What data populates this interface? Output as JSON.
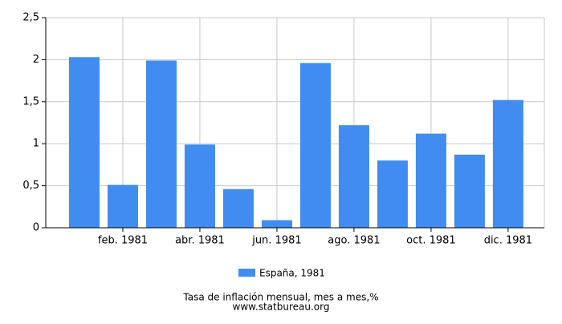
{
  "chart_data": {
    "type": "bar",
    "title": "Tasa de inflación mensual, mes a mes,%",
    "source": "www.statbureau.org",
    "categories": [
      null,
      "feb. 1981",
      null,
      "abr. 1981",
      null,
      "jun. 1981",
      null,
      "ago. 1981",
      null,
      "oct. 1981",
      null,
      "dic. 1981"
    ],
    "series": [
      {
        "name": "España, 1981",
        "color": "#418cf0",
        "values": [
          2.03,
          0.51,
          1.99,
          0.99,
          0.46,
          0.09,
          1.96,
          1.22,
          0.8,
          1.12,
          0.87,
          1.52
        ]
      }
    ],
    "ylim": [
      0,
      2.5
    ],
    "yticks": [
      0,
      {
        "value": 0.5,
        "label": "0,5"
      },
      1,
      {
        "value": 1.5,
        "label": "1,5"
      },
      2,
      {
        "value": 2.5,
        "label": "2,5"
      }
    ],
    "grid": true
  }
}
